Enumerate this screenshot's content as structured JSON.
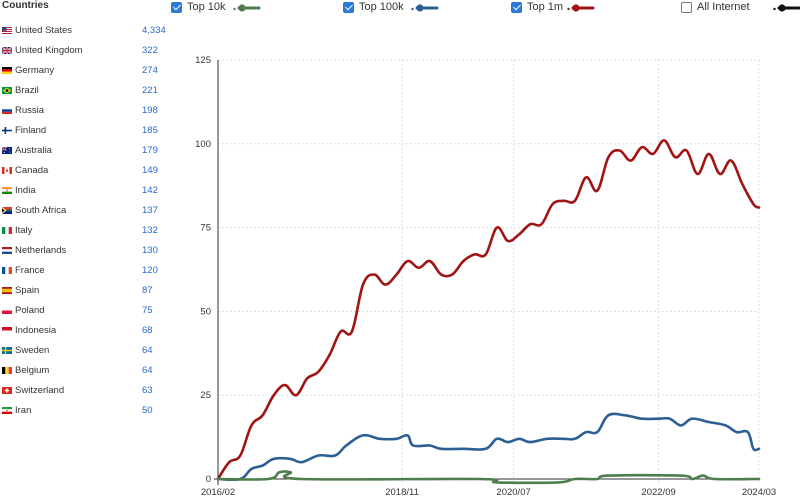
{
  "countries": {
    "title": "Countries",
    "items": [
      {
        "name": "United States",
        "count": "4,334",
        "flag": "us-flag"
      },
      {
        "name": "United Kingdom",
        "count": "322",
        "flag": "uk-flag"
      },
      {
        "name": "Germany",
        "count": "274",
        "flag": "germany-flag"
      },
      {
        "name": "Brazil",
        "count": "221",
        "flag": "brazil-flag"
      },
      {
        "name": "Russia",
        "count": "198",
        "flag": "russia-flag"
      },
      {
        "name": "Finland",
        "count": "185",
        "flag": "finland-flag"
      },
      {
        "name": "Australia",
        "count": "179",
        "flag": "australia-flag"
      },
      {
        "name": "Canada",
        "count": "149",
        "flag": "canada-flag"
      },
      {
        "name": "India",
        "count": "142",
        "flag": "india-flag"
      },
      {
        "name": "South Africa",
        "count": "137",
        "flag": "south-africa-flag"
      },
      {
        "name": "Italy",
        "count": "132",
        "flag": "italy-flag"
      },
      {
        "name": "Netherlands",
        "count": "130",
        "flag": "netherlands-flag"
      },
      {
        "name": "France",
        "count": "120",
        "flag": "france-flag"
      },
      {
        "name": "Spain",
        "count": "87",
        "flag": "spain-flag"
      },
      {
        "name": "Poland",
        "count": "75",
        "flag": "poland-flag"
      },
      {
        "name": "Indonesia",
        "count": "68",
        "flag": "indonesia-flag"
      },
      {
        "name": "Sweden",
        "count": "64",
        "flag": "sweden-flag"
      },
      {
        "name": "Belgium",
        "count": "64",
        "flag": "belgium-flag"
      },
      {
        "name": "Switzerland",
        "count": "63",
        "flag": "switzerland-flag"
      },
      {
        "name": "Iran",
        "count": "50",
        "flag": "iran-flag"
      }
    ]
  },
  "legend": [
    {
      "label": "Top 10k",
      "checked": true,
      "color": "#4e7d4e"
    },
    {
      "label": "Top 100k",
      "checked": true,
      "color": "#2c5f94"
    },
    {
      "label": "Top 1m",
      "checked": true,
      "color": "#a01414"
    },
    {
      "label": "All Internet",
      "checked": false,
      "color": "#111111"
    }
  ],
  "chart_data": {
    "type": "line",
    "ylim": [
      0,
      125
    ],
    "y_ticks": [
      0,
      25,
      50,
      75,
      100,
      125
    ],
    "x_ticks": [
      "2016/02",
      "2018/11",
      "2020/07",
      "2022/09",
      "2024/03"
    ],
    "x_range": [
      "2016/02",
      "2024/03"
    ],
    "grid": true,
    "series": [
      {
        "name": "Top 1m",
        "color": "#a01414",
        "points": [
          [
            "2016/02",
            0
          ],
          [
            "2016/04",
            5
          ],
          [
            "2016/06",
            7
          ],
          [
            "2016/08",
            16
          ],
          [
            "2016/10",
            19
          ],
          [
            "2016/12",
            25
          ],
          [
            "2017/02",
            28
          ],
          [
            "2017/04",
            25
          ],
          [
            "2017/06",
            30
          ],
          [
            "2017/08",
            32
          ],
          [
            "2017/10",
            37
          ],
          [
            "2017/12",
            44
          ],
          [
            "2018/02",
            44
          ],
          [
            "2018/04",
            58
          ],
          [
            "2018/06",
            61
          ],
          [
            "2018/08",
            58
          ],
          [
            "2018/10",
            61
          ],
          [
            "2018/12",
            65
          ],
          [
            "2019/02",
            63
          ],
          [
            "2019/04",
            65
          ],
          [
            "2019/06",
            61
          ],
          [
            "2019/08",
            61
          ],
          [
            "2019/10",
            65
          ],
          [
            "2019/12",
            67
          ],
          [
            "2020/02",
            67
          ],
          [
            "2020/04",
            75
          ],
          [
            "2020/06",
            71
          ],
          [
            "2020/08",
            73
          ],
          [
            "2020/10",
            76
          ],
          [
            "2020/12",
            76
          ],
          [
            "2021/02",
            82
          ],
          [
            "2021/04",
            83
          ],
          [
            "2021/06",
            83
          ],
          [
            "2021/08",
            90
          ],
          [
            "2021/10",
            86
          ],
          [
            "2021/12",
            96
          ],
          [
            "2022/02",
            98
          ],
          [
            "2022/04",
            95
          ],
          [
            "2022/06",
            99
          ],
          [
            "2022/08",
            97
          ],
          [
            "2022/10",
            101
          ],
          [
            "2022/12",
            96
          ],
          [
            "2023/02",
            98
          ],
          [
            "2023/04",
            91
          ],
          [
            "2023/06",
            97
          ],
          [
            "2023/08",
            91
          ],
          [
            "2023/10",
            95
          ],
          [
            "2023/12",
            88
          ],
          [
            "2024/02",
            82
          ],
          [
            "2024/03",
            81
          ]
        ]
      },
      {
        "name": "Top 100k",
        "color": "#2c5f94",
        "points": [
          [
            "2016/02",
            0
          ],
          [
            "2016/06",
            0
          ],
          [
            "2016/08",
            3
          ],
          [
            "2016/10",
            4
          ],
          [
            "2016/12",
            6
          ],
          [
            "2017/03",
            6
          ],
          [
            "2017/05",
            5
          ],
          [
            "2017/08",
            7
          ],
          [
            "2017/11",
            7
          ],
          [
            "2018/01",
            10
          ],
          [
            "2018/04",
            13
          ],
          [
            "2018/07",
            12
          ],
          [
            "2018/10",
            12
          ],
          [
            "2018/12",
            13
          ],
          [
            "2019/01",
            10
          ],
          [
            "2019/04",
            10
          ],
          [
            "2019/06",
            9
          ],
          [
            "2019/10",
            9
          ],
          [
            "2020/02",
            9
          ],
          [
            "2020/04",
            12
          ],
          [
            "2020/06",
            11
          ],
          [
            "2020/08",
            12
          ],
          [
            "2020/10",
            11
          ],
          [
            "2021/01",
            12
          ],
          [
            "2021/04",
            12
          ],
          [
            "2021/06",
            12
          ],
          [
            "2021/08",
            14
          ],
          [
            "2021/10",
            14
          ],
          [
            "2021/12",
            19
          ],
          [
            "2022/03",
            19
          ],
          [
            "2022/06",
            18
          ],
          [
            "2022/09",
            18
          ],
          [
            "2022/11",
            18
          ],
          [
            "2023/01",
            16
          ],
          [
            "2023/03",
            18
          ],
          [
            "2023/06",
            17
          ],
          [
            "2023/09",
            16
          ],
          [
            "2023/11",
            14
          ],
          [
            "2024/01",
            14
          ],
          [
            "2024/02",
            9
          ],
          [
            "2024/03",
            9
          ]
        ]
      },
      {
        "name": "Top 10k",
        "color": "#4e7d4e",
        "points": [
          [
            "2016/02",
            0
          ],
          [
            "2016/11",
            0
          ],
          [
            "2017/01",
            2
          ],
          [
            "2017/03",
            2
          ],
          [
            "2017/05",
            0
          ],
          [
            "2020/01",
            0
          ],
          [
            "2020/04",
            -1
          ],
          [
            "2021/03",
            -1
          ],
          [
            "2021/06",
            0
          ],
          [
            "2021/10",
            0
          ],
          [
            "2021/12",
            1
          ],
          [
            "2023/01",
            1
          ],
          [
            "2023/03",
            0
          ],
          [
            "2023/05",
            1
          ],
          [
            "2023/07",
            0
          ],
          [
            "2024/03",
            0
          ]
        ]
      }
    ]
  }
}
